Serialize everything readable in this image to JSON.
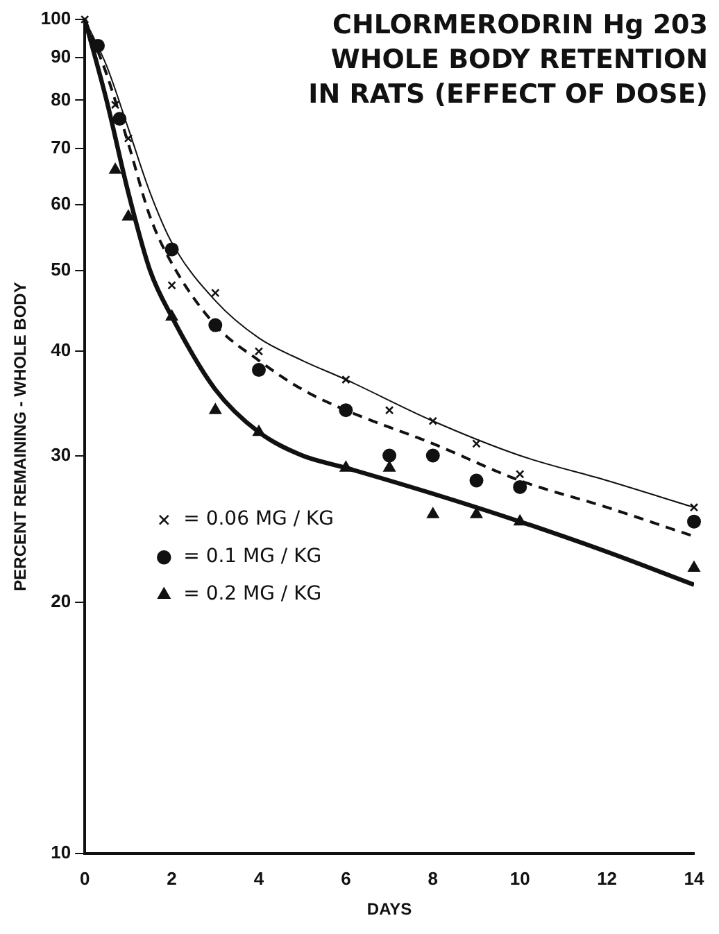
{
  "chart_data": {
    "type": "scatter",
    "title": "CHLORMERODRIN Hg 203 WHOLE BODY RETENTION IN RATS (EFFECT OF DOSE)",
    "xlabel": "DAYS",
    "ylabel": "PERCENT REMAINING - WHOLE BODY",
    "log": "y",
    "xlim": [
      0,
      14
    ],
    "xticks": [
      0,
      2,
      4,
      6,
      8,
      10,
      12,
      14
    ],
    "ylim": [
      10,
      100
    ],
    "yticks": [
      10,
      20,
      30,
      40,
      50,
      60,
      70,
      80,
      90,
      100
    ],
    "grid": false,
    "legend": "left",
    "series": [
      {
        "name": "= 0.06 MG / KG",
        "color": "#111111",
        "marker": "cross",
        "x": [
          0,
          0.7,
          1,
          2,
          3,
          4,
          6,
          7,
          8,
          9,
          10,
          14
        ],
        "values": [
          100,
          79,
          72,
          48,
          47,
          40,
          37,
          34,
          33,
          31,
          28.5,
          26
        ]
      },
      {
        "name": "= 0.1 MG / KG",
        "color": "#111111",
        "marker": "circle",
        "x": [
          0.3,
          0.8,
          2,
          3,
          4,
          6,
          7,
          8,
          9,
          10,
          14
        ],
        "values": [
          93,
          76,
          53,
          43,
          38,
          34,
          30,
          30,
          28,
          27.5,
          25
        ]
      },
      {
        "name": "= 0.2 MG / KG",
        "color": "#111111",
        "marker": "triangle",
        "x": [
          0.7,
          1,
          2,
          3,
          4,
          6,
          7,
          8,
          9,
          10,
          14
        ],
        "values": [
          66,
          58,
          44,
          34,
          32,
          29,
          29,
          25.5,
          25.5,
          25,
          22
        ]
      },
      {
        "type": "line",
        "color": "#111111",
        "marker": "none",
        "line_style": "solid",
        "x": [
          0,
          0.5,
          1,
          1.5,
          2,
          3,
          4,
          5,
          6,
          8,
          10,
          12,
          14
        ],
        "values": [
          100,
          88,
          74,
          62,
          54,
          46,
          41.5,
          39,
          37,
          33,
          30,
          28,
          26
        ]
      },
      {
        "type": "line",
        "color": "#111111",
        "marker": "none",
        "line_style": "dashed",
        "x": [
          0,
          0.5,
          1,
          1.5,
          2,
          3,
          4,
          5,
          6,
          8,
          10,
          12,
          14
        ],
        "values": [
          100,
          86,
          71,
          58,
          51,
          43,
          39,
          36,
          34,
          31,
          28,
          26,
          24
        ]
      },
      {
        "type": "line",
        "color": "#111111",
        "marker": "none",
        "line_style": "solid",
        "x": [
          0,
          0.5,
          1,
          1.5,
          2,
          3,
          4,
          5,
          6,
          8,
          10,
          12,
          14
        ],
        "values": [
          100,
          80,
          62,
          50,
          44,
          36,
          32,
          30,
          29,
          27,
          25,
          23,
          21
        ]
      }
    ]
  }
}
